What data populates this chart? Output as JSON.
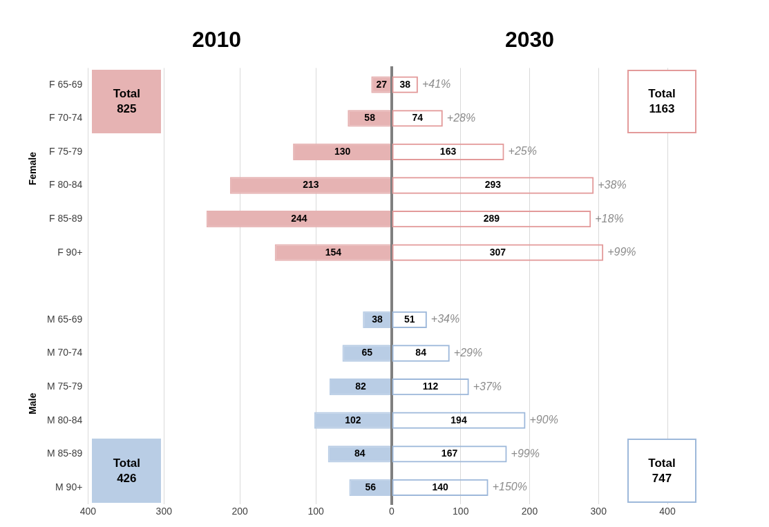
{
  "chart_data": [
    {
      "type": "bar",
      "orientation": "horizontal",
      "title": "2010",
      "categories": [
        "F 65-69",
        "F 70-74",
        "F 75-79",
        "F 80-84",
        "F 85-89",
        "F 90+",
        null,
        "M 65-69",
        "M 70-74",
        "M 75-79",
        "M 80-84",
        "M 85-89",
        "M 90+"
      ],
      "series": [
        {
          "color": "#e6b3b3",
          "values": [
            27,
            58,
            130,
            213,
            244,
            154,
            null,
            null,
            null,
            null,
            null,
            null,
            null
          ]
        },
        {
          "color": "#b9cde5",
          "values": [
            null,
            null,
            null,
            null,
            null,
            null,
            null,
            38,
            65,
            82,
            102,
            84,
            56
          ]
        }
      ],
      "xlim": [
        400,
        0
      ],
      "xticks": [
        400,
        300,
        200,
        100
      ],
      "grid": "x",
      "legend": false,
      "data_labels": true,
      "annotations": [
        "Female",
        "Male",
        "Total\n825",
        "Total\n426"
      ]
    },
    {
      "type": "bar",
      "orientation": "horizontal",
      "title": "2030",
      "categories": [
        null,
        null,
        null,
        null,
        null,
        null,
        null,
        null,
        null,
        null,
        null,
        null,
        null
      ],
      "series": [
        {
          "color": "#e39a9a",
          "values": [
            38,
            74,
            163,
            293,
            289,
            307,
            null,
            null,
            null,
            null,
            null,
            null,
            null
          ]
        },
        {
          "color": "#9db8da",
          "values": [
            null,
            null,
            null,
            null,
            null,
            null,
            null,
            51,
            84,
            112,
            194,
            167,
            140
          ]
        }
      ],
      "xlim": [
        0,
        400
      ],
      "xticks": [
        0,
        100,
        200,
        300,
        400
      ],
      "grid": "x",
      "legend": false,
      "data_labels": true,
      "tick_labels": "x",
      "annotations": [
        "Total\n1163",
        "Total\n747",
        "+41%",
        "+28%",
        "+25%",
        "+38%",
        "+18%",
        "+99%",
        "+34%",
        "+29%",
        "+37%",
        "+90%",
        "+99%",
        "+150%"
      ]
    }
  ]
}
